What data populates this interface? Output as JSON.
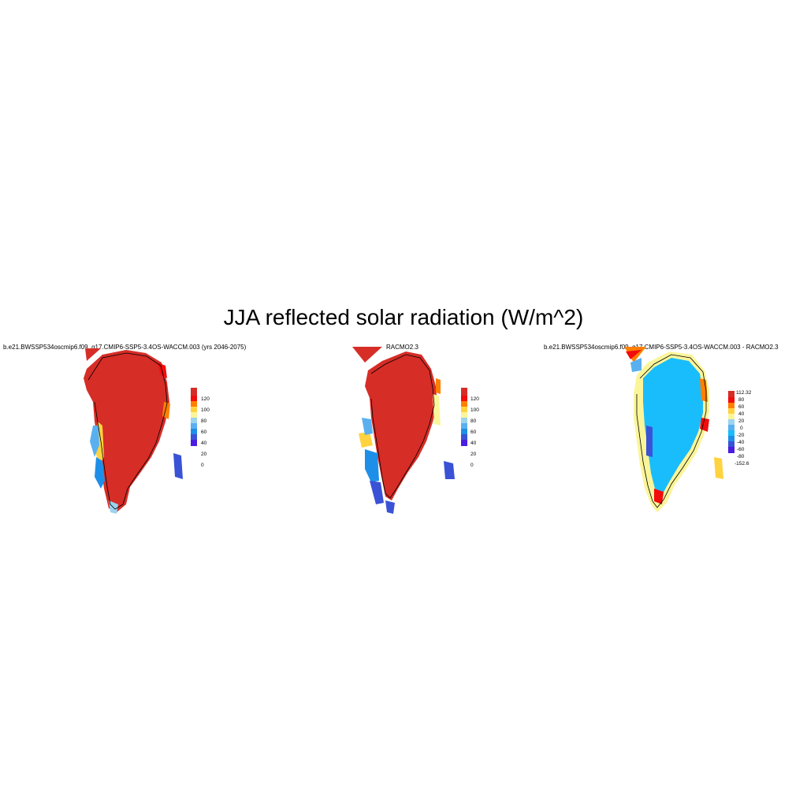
{
  "title": "JJA reflected solar radiation (W/m^2)",
  "panels": [
    {
      "subtitle": "b.e21.BWSSP534oscmip6.f09_g17.CMIP6-SSP5-3.4OS-WACCM.003 (yrs 2046-2075)",
      "colorbar": {
        "labels": [
          "120",
          "100",
          "80",
          "60",
          "40",
          "20",
          "0"
        ],
        "colors": [
          "#d62d27",
          "#f20c0c",
          "#ff7f00",
          "#ffd23f",
          "#fbf59a",
          "#9cd3ee",
          "#5ab0ef",
          "#1e8fe8",
          "#3a52d6",
          "#4a1de0"
        ]
      }
    },
    {
      "subtitle": "RACMO2.3",
      "colorbar": {
        "labels": [
          "120",
          "100",
          "80",
          "60",
          "40",
          "20",
          "0"
        ],
        "colors": [
          "#d62d27",
          "#f20c0c",
          "#ff7f00",
          "#ffd23f",
          "#fbf59a",
          "#9cd3ee",
          "#5ab0ef",
          "#1e8fe8",
          "#3a52d6",
          "#4a1de0"
        ]
      }
    },
    {
      "subtitle": "b.e21.BWSSP534oscmip6.f09_g17.CMIP6-SSP5-3.4OS-WACCM.003 - RACMO2.3",
      "colorbar": {
        "labels": [
          "112.32",
          "80",
          "60",
          "40",
          "20",
          "0",
          "-20",
          "-40",
          "-60",
          "-80",
          "-152.6"
        ],
        "colors": [
          "#d62d27",
          "#f20c0c",
          "#ff7f00",
          "#ffd23f",
          "#fbf59a",
          "#9cd3ee",
          "#5ab0ef",
          "#19bdfb",
          "#1e8fe8",
          "#3a52d6",
          "#4a1de0"
        ]
      }
    }
  ]
}
